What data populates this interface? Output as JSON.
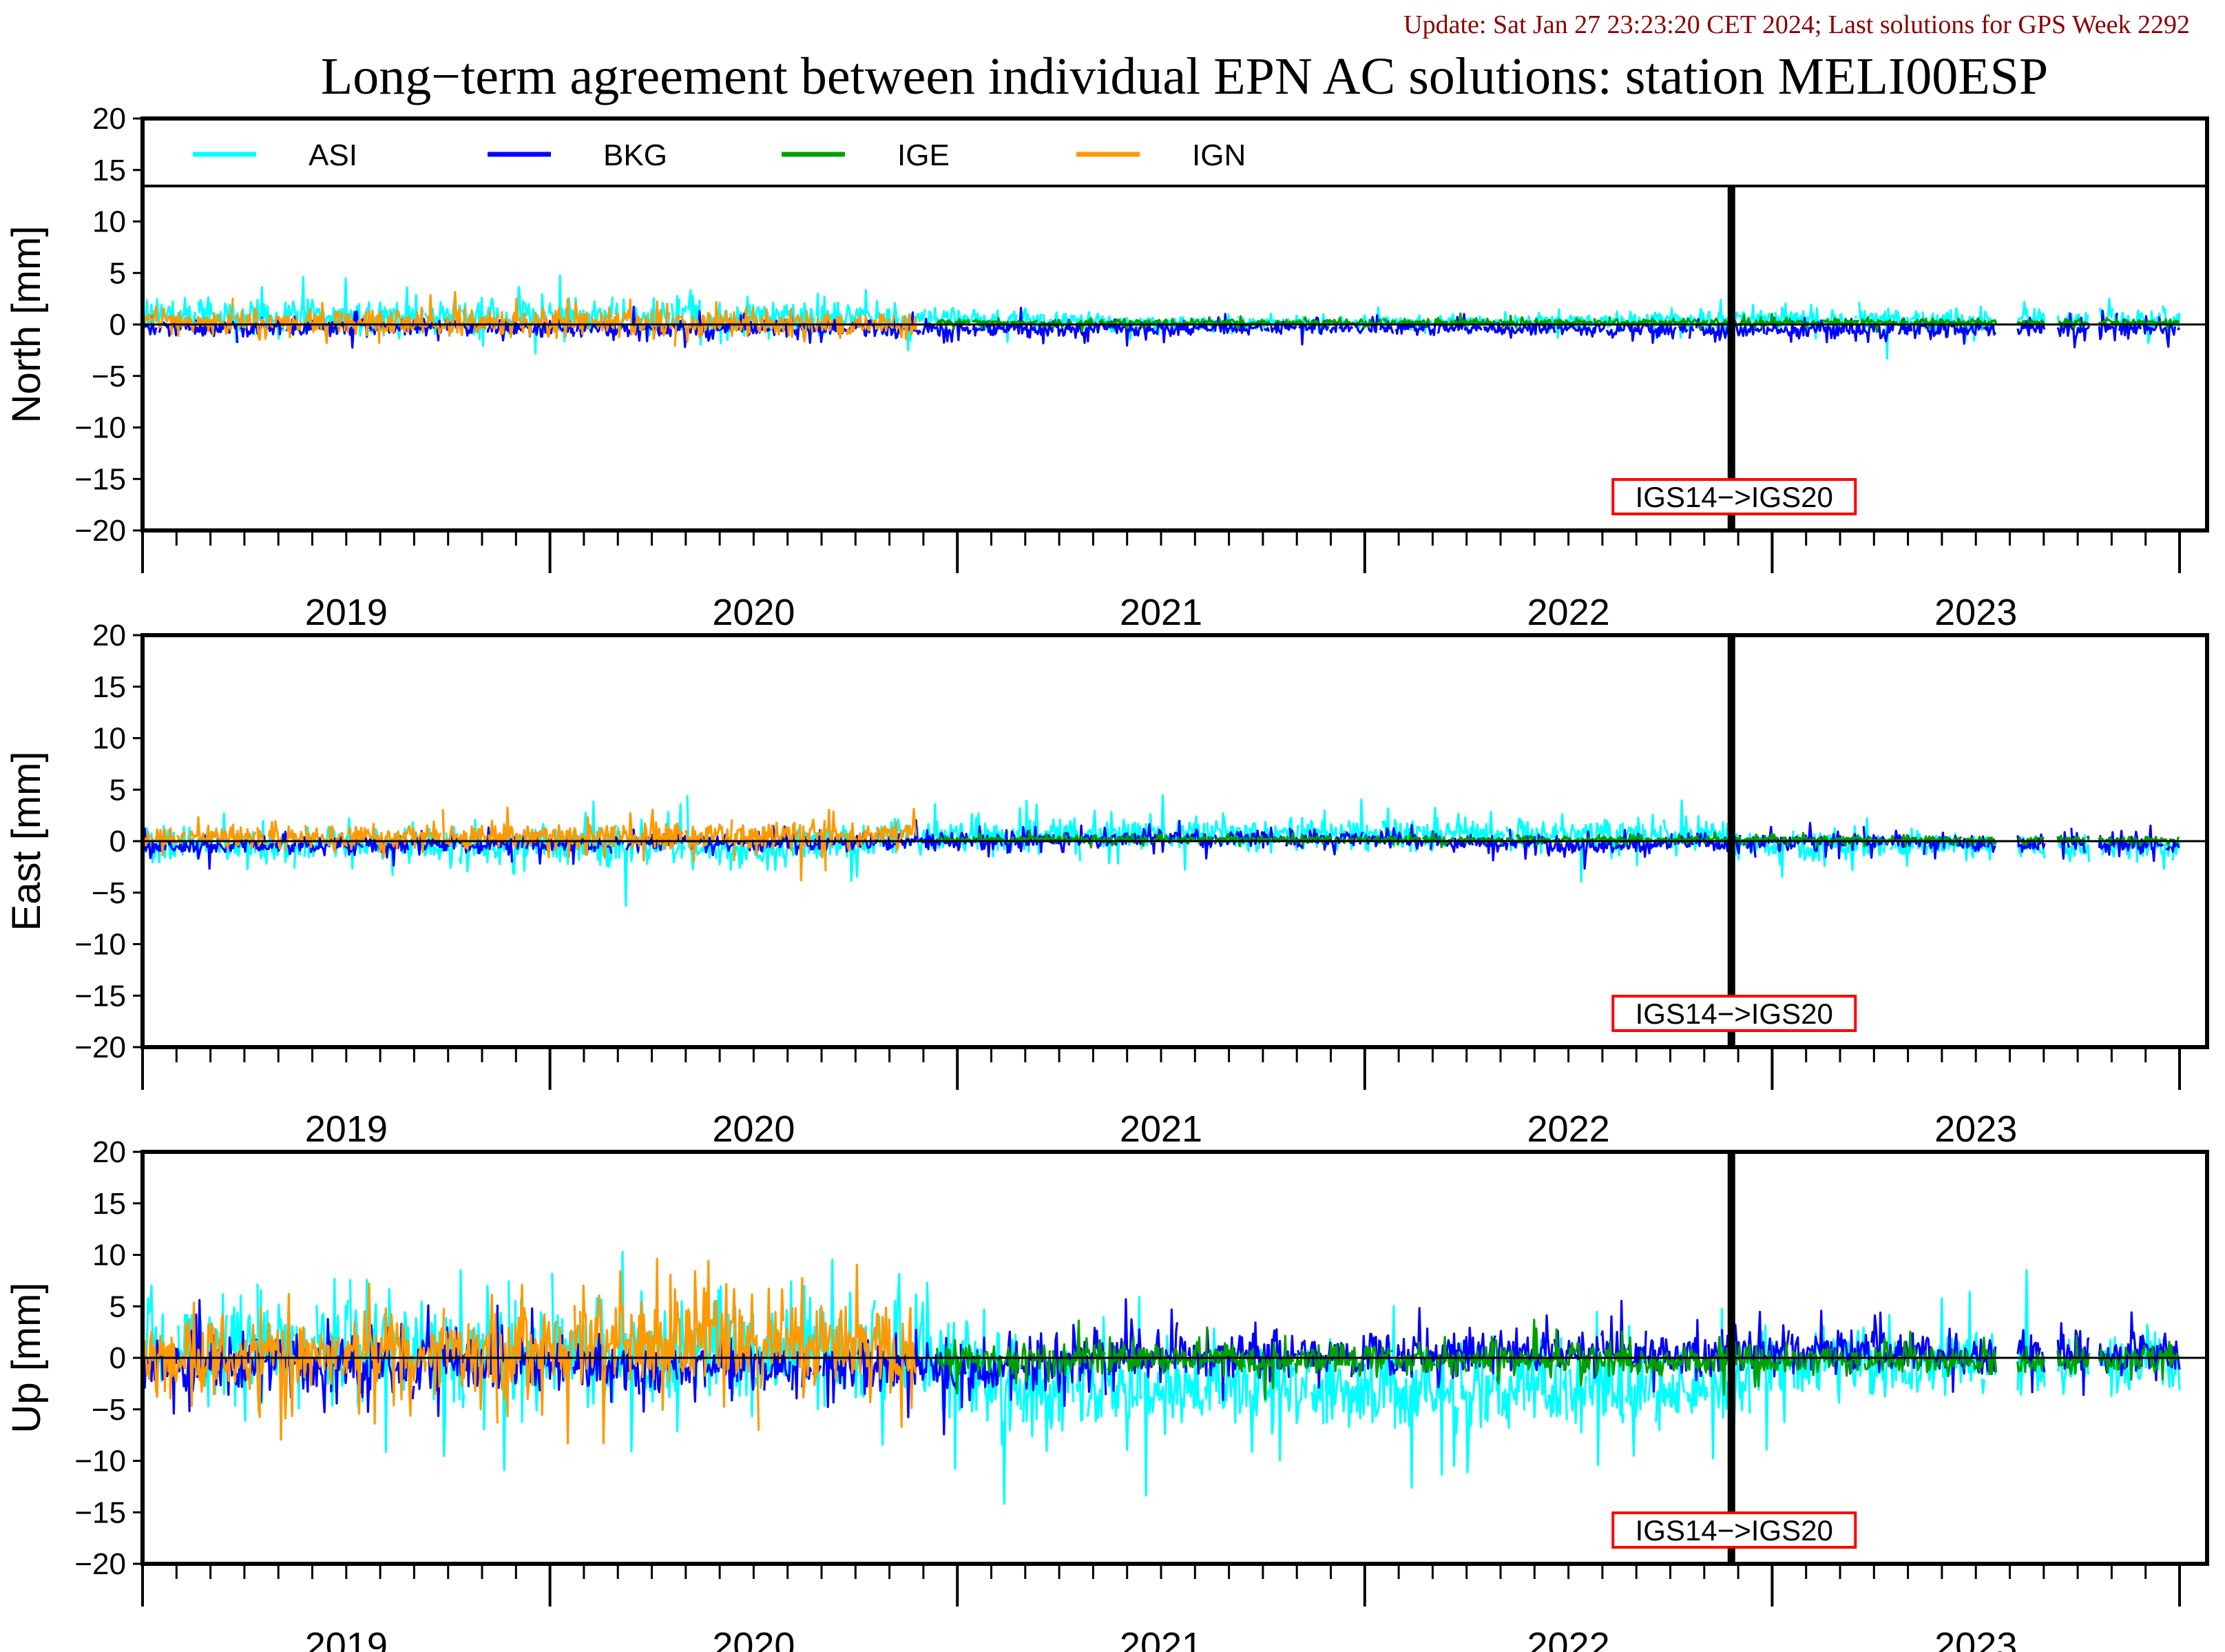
{
  "update_text": "Update: Sat Jan 27 23:23:20 CET 2024; Last solutions for GPS Week 2292",
  "title": "Long−term agreement between individual EPN AC solutions: station MELI00ESP",
  "colors": {
    "ASI": "#00ffff",
    "BKG": "#0000ff",
    "IGE": "#00a000",
    "IGN": "#ff9900",
    "update_text": "#8b0000",
    "annotation_box": "#ff0000"
  },
  "chart_data": [
    {
      "type": "line",
      "component": "North",
      "ylabel": "North [mm]",
      "ylim": [
        -20,
        20
      ],
      "yticks": [
        20,
        15,
        10,
        5,
        0,
        -5,
        -10,
        -15,
        -20
      ],
      "xlim": [
        2018.5,
        2023.5
      ],
      "year_labels": [
        "2019",
        "2020",
        "2021",
        "2022",
        "2023"
      ],
      "legend": [
        "ASI",
        "BKG",
        "IGE",
        "IGN"
      ],
      "legend_placement": "top",
      "zero_line": true,
      "frame_change": {
        "x": 2022.4,
        "label": "IGS14−>IGS20"
      },
      "series": [
        {
          "name": "ASI",
          "start": 2018.5,
          "end": 2023.5,
          "envelope": [
            [
              2018.5,
              1.5
            ],
            [
              2019.0,
              2.0
            ],
            [
              2019.5,
              2.0
            ],
            [
              2020.0,
              2.5
            ],
            [
              2020.5,
              1.2
            ],
            [
              2021.0,
              0.7
            ],
            [
              2021.5,
              0.7
            ],
            [
              2022.0,
              0.8
            ],
            [
              2022.5,
              1.2
            ],
            [
              2023.0,
              1.2
            ],
            [
              2023.5,
              1.2
            ]
          ],
          "bias": [
            [
              2018.5,
              0.8
            ],
            [
              2020.5,
              0.6
            ],
            [
              2021.0,
              0.1
            ],
            [
              2022.4,
              0.4
            ],
            [
              2023.5,
              0.5
            ]
          ]
        },
        {
          "name": "BKG",
          "start": 2018.5,
          "end": 2023.5,
          "envelope": [
            [
              2018.5,
              0.8
            ],
            [
              2020.0,
              0.9
            ],
            [
              2021.0,
              0.8
            ],
            [
              2022.0,
              0.8
            ],
            [
              2023.5,
              1.0
            ]
          ],
          "bias": [
            [
              2018.5,
              -0.3
            ],
            [
              2020.5,
              -0.4
            ],
            [
              2021.5,
              -0.3
            ],
            [
              2022.4,
              -0.5
            ],
            [
              2023.5,
              -0.4
            ]
          ]
        },
        {
          "name": "IGE",
          "start": 2020.45,
          "end": 2023.5,
          "envelope": [
            [
              2020.45,
              0.4
            ],
            [
              2023.5,
              0.4
            ]
          ],
          "bias": [
            [
              2020.45,
              0.2
            ],
            [
              2023.5,
              0.2
            ]
          ]
        },
        {
          "name": "IGN",
          "start": 2018.5,
          "end": 2020.4,
          "envelope": [
            [
              2018.5,
              1.2
            ],
            [
              2019.5,
              1.5
            ],
            [
              2020.4,
              1.2
            ]
          ],
          "bias": [
            [
              2018.5,
              0.3
            ],
            [
              2020.4,
              0.0
            ]
          ]
        }
      ]
    },
    {
      "type": "line",
      "component": "East",
      "ylabel": "East [mm]",
      "ylim": [
        -20,
        20
      ],
      "yticks": [
        20,
        15,
        10,
        5,
        0,
        -5,
        -10,
        -15,
        -20
      ],
      "xlim": [
        2018.5,
        2023.5
      ],
      "year_labels": [
        "2019",
        "2020",
        "2021",
        "2022",
        "2023"
      ],
      "zero_line": true,
      "frame_change": {
        "x": 2022.4,
        "label": "IGS14−>IGS20"
      },
      "series": [
        {
          "name": "ASI",
          "start": 2018.5,
          "end": 2023.5,
          "envelope": [
            [
              2018.5,
              1.8
            ],
            [
              2019.5,
              2.0
            ],
            [
              2020.0,
              2.2
            ],
            [
              2020.5,
              2.0
            ],
            [
              2021.0,
              1.8
            ],
            [
              2022.0,
              1.8
            ],
            [
              2022.5,
              1.6
            ],
            [
              2023.5,
              1.2
            ]
          ],
          "bias": [
            [
              2018.5,
              -0.4
            ],
            [
              2019.5,
              -0.3
            ],
            [
              2020.0,
              -0.6
            ],
            [
              2020.5,
              0.6
            ],
            [
              2021.5,
              0.8
            ],
            [
              2022.4,
              0.6
            ],
            [
              2022.5,
              -0.5
            ],
            [
              2023.5,
              -0.6
            ]
          ]
        },
        {
          "name": "BKG",
          "start": 2018.5,
          "end": 2023.5,
          "envelope": [
            [
              2018.5,
              0.9
            ],
            [
              2021.0,
              1.0
            ],
            [
              2023.5,
              0.9
            ]
          ],
          "bias": [
            [
              2018.5,
              -0.5
            ],
            [
              2020.5,
              0.0
            ],
            [
              2021.5,
              0.3
            ],
            [
              2022.0,
              -0.5
            ],
            [
              2022.4,
              0.0
            ],
            [
              2023.5,
              -0.3
            ]
          ]
        },
        {
          "name": "IGE",
          "start": 2020.45,
          "end": 2023.5,
          "envelope": [
            [
              2020.45,
              0.4
            ],
            [
              2023.5,
              0.4
            ]
          ],
          "bias": [
            [
              2020.45,
              0.2
            ],
            [
              2023.5,
              0.1
            ]
          ]
        },
        {
          "name": "IGN",
          "start": 2018.5,
          "end": 2020.4,
          "envelope": [
            [
              2018.5,
              1.2
            ],
            [
              2019.5,
              1.3
            ],
            [
              2020.4,
              1.6
            ]
          ],
          "bias": [
            [
              2018.5,
              0.3
            ],
            [
              2020.4,
              0.6
            ]
          ]
        }
      ]
    },
    {
      "type": "line",
      "component": "Up",
      "ylabel": "Up [mm]",
      "ylim": [
        -20,
        20
      ],
      "yticks": [
        20,
        15,
        10,
        5,
        0,
        -5,
        -10,
        -15,
        -20
      ],
      "xlim": [
        2018.5,
        2023.5
      ],
      "year_labels": [
        "2019",
        "2020",
        "2021",
        "2022",
        "2023"
      ],
      "zero_line": true,
      "frame_change": {
        "x": 2022.4,
        "label": "IGS14−>IGS20"
      },
      "series": [
        {
          "name": "ASI",
          "start": 2018.5,
          "end": 2023.5,
          "envelope": [
            [
              2018.5,
              5.0
            ],
            [
              2019.5,
              6.0
            ],
            [
              2020.0,
              6.0
            ],
            [
              2020.5,
              5.0
            ],
            [
              2021.0,
              4.5
            ],
            [
              2022.0,
              4.5
            ],
            [
              2022.5,
              3.5
            ],
            [
              2023.5,
              3.0
            ]
          ],
          "bias": [
            [
              2018.5,
              0.5
            ],
            [
              2020.4,
              0.5
            ],
            [
              2020.6,
              -3.0
            ],
            [
              2022.4,
              -3.0
            ],
            [
              2022.5,
              -0.5
            ],
            [
              2023.5,
              -0.5
            ]
          ]
        },
        {
          "name": "BKG",
          "start": 2018.5,
          "end": 2023.5,
          "envelope": [
            [
              2018.5,
              3.0
            ],
            [
              2020.0,
              3.2
            ],
            [
              2021.0,
              2.8
            ],
            [
              2022.0,
              2.5
            ],
            [
              2023.5,
              2.5
            ]
          ],
          "bias": [
            [
              2018.5,
              -0.5
            ],
            [
              2020.5,
              -1.0
            ],
            [
              2021.0,
              0.5
            ],
            [
              2022.0,
              0.5
            ],
            [
              2023.5,
              0.3
            ]
          ]
        },
        {
          "name": "IGE",
          "start": 2020.45,
          "end": 2023.5,
          "envelope": [
            [
              2020.45,
              1.8
            ],
            [
              2023.5,
              1.5
            ]
          ],
          "bias": [
            [
              2020.45,
              0.0
            ],
            [
              2023.5,
              -0.3
            ]
          ]
        },
        {
          "name": "IGN",
          "start": 2018.5,
          "end": 2020.4,
          "envelope": [
            [
              2018.5,
              4.0
            ],
            [
              2019.0,
              4.5
            ],
            [
              2020.0,
              5.0
            ],
            [
              2020.4,
              4.5
            ]
          ],
          "bias": [
            [
              2018.5,
              0.0
            ],
            [
              2020.0,
              1.5
            ],
            [
              2020.4,
              0.5
            ]
          ]
        }
      ]
    }
  ]
}
